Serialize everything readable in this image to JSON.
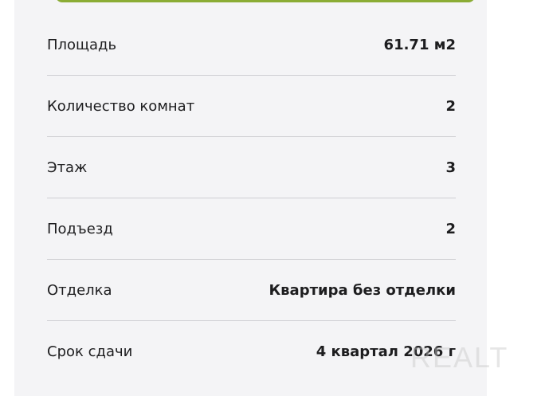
{
  "properties": [
    {
      "label": "Площадь",
      "value": "61.71 м2"
    },
    {
      "label": "Количество комнат",
      "value": "2"
    },
    {
      "label": "Этаж",
      "value": "3"
    },
    {
      "label": "Подъезд",
      "value": "2"
    },
    {
      "label": "Отделка",
      "value": "Квартира без отделки"
    },
    {
      "label": "Срок сдачи",
      "value": "4 квартал 2026 г"
    }
  ],
  "watermark": "REALT",
  "colors": {
    "accent": "#8bac35",
    "panel_bg": "#f4f4f6",
    "text": "#1d1d1f"
  }
}
